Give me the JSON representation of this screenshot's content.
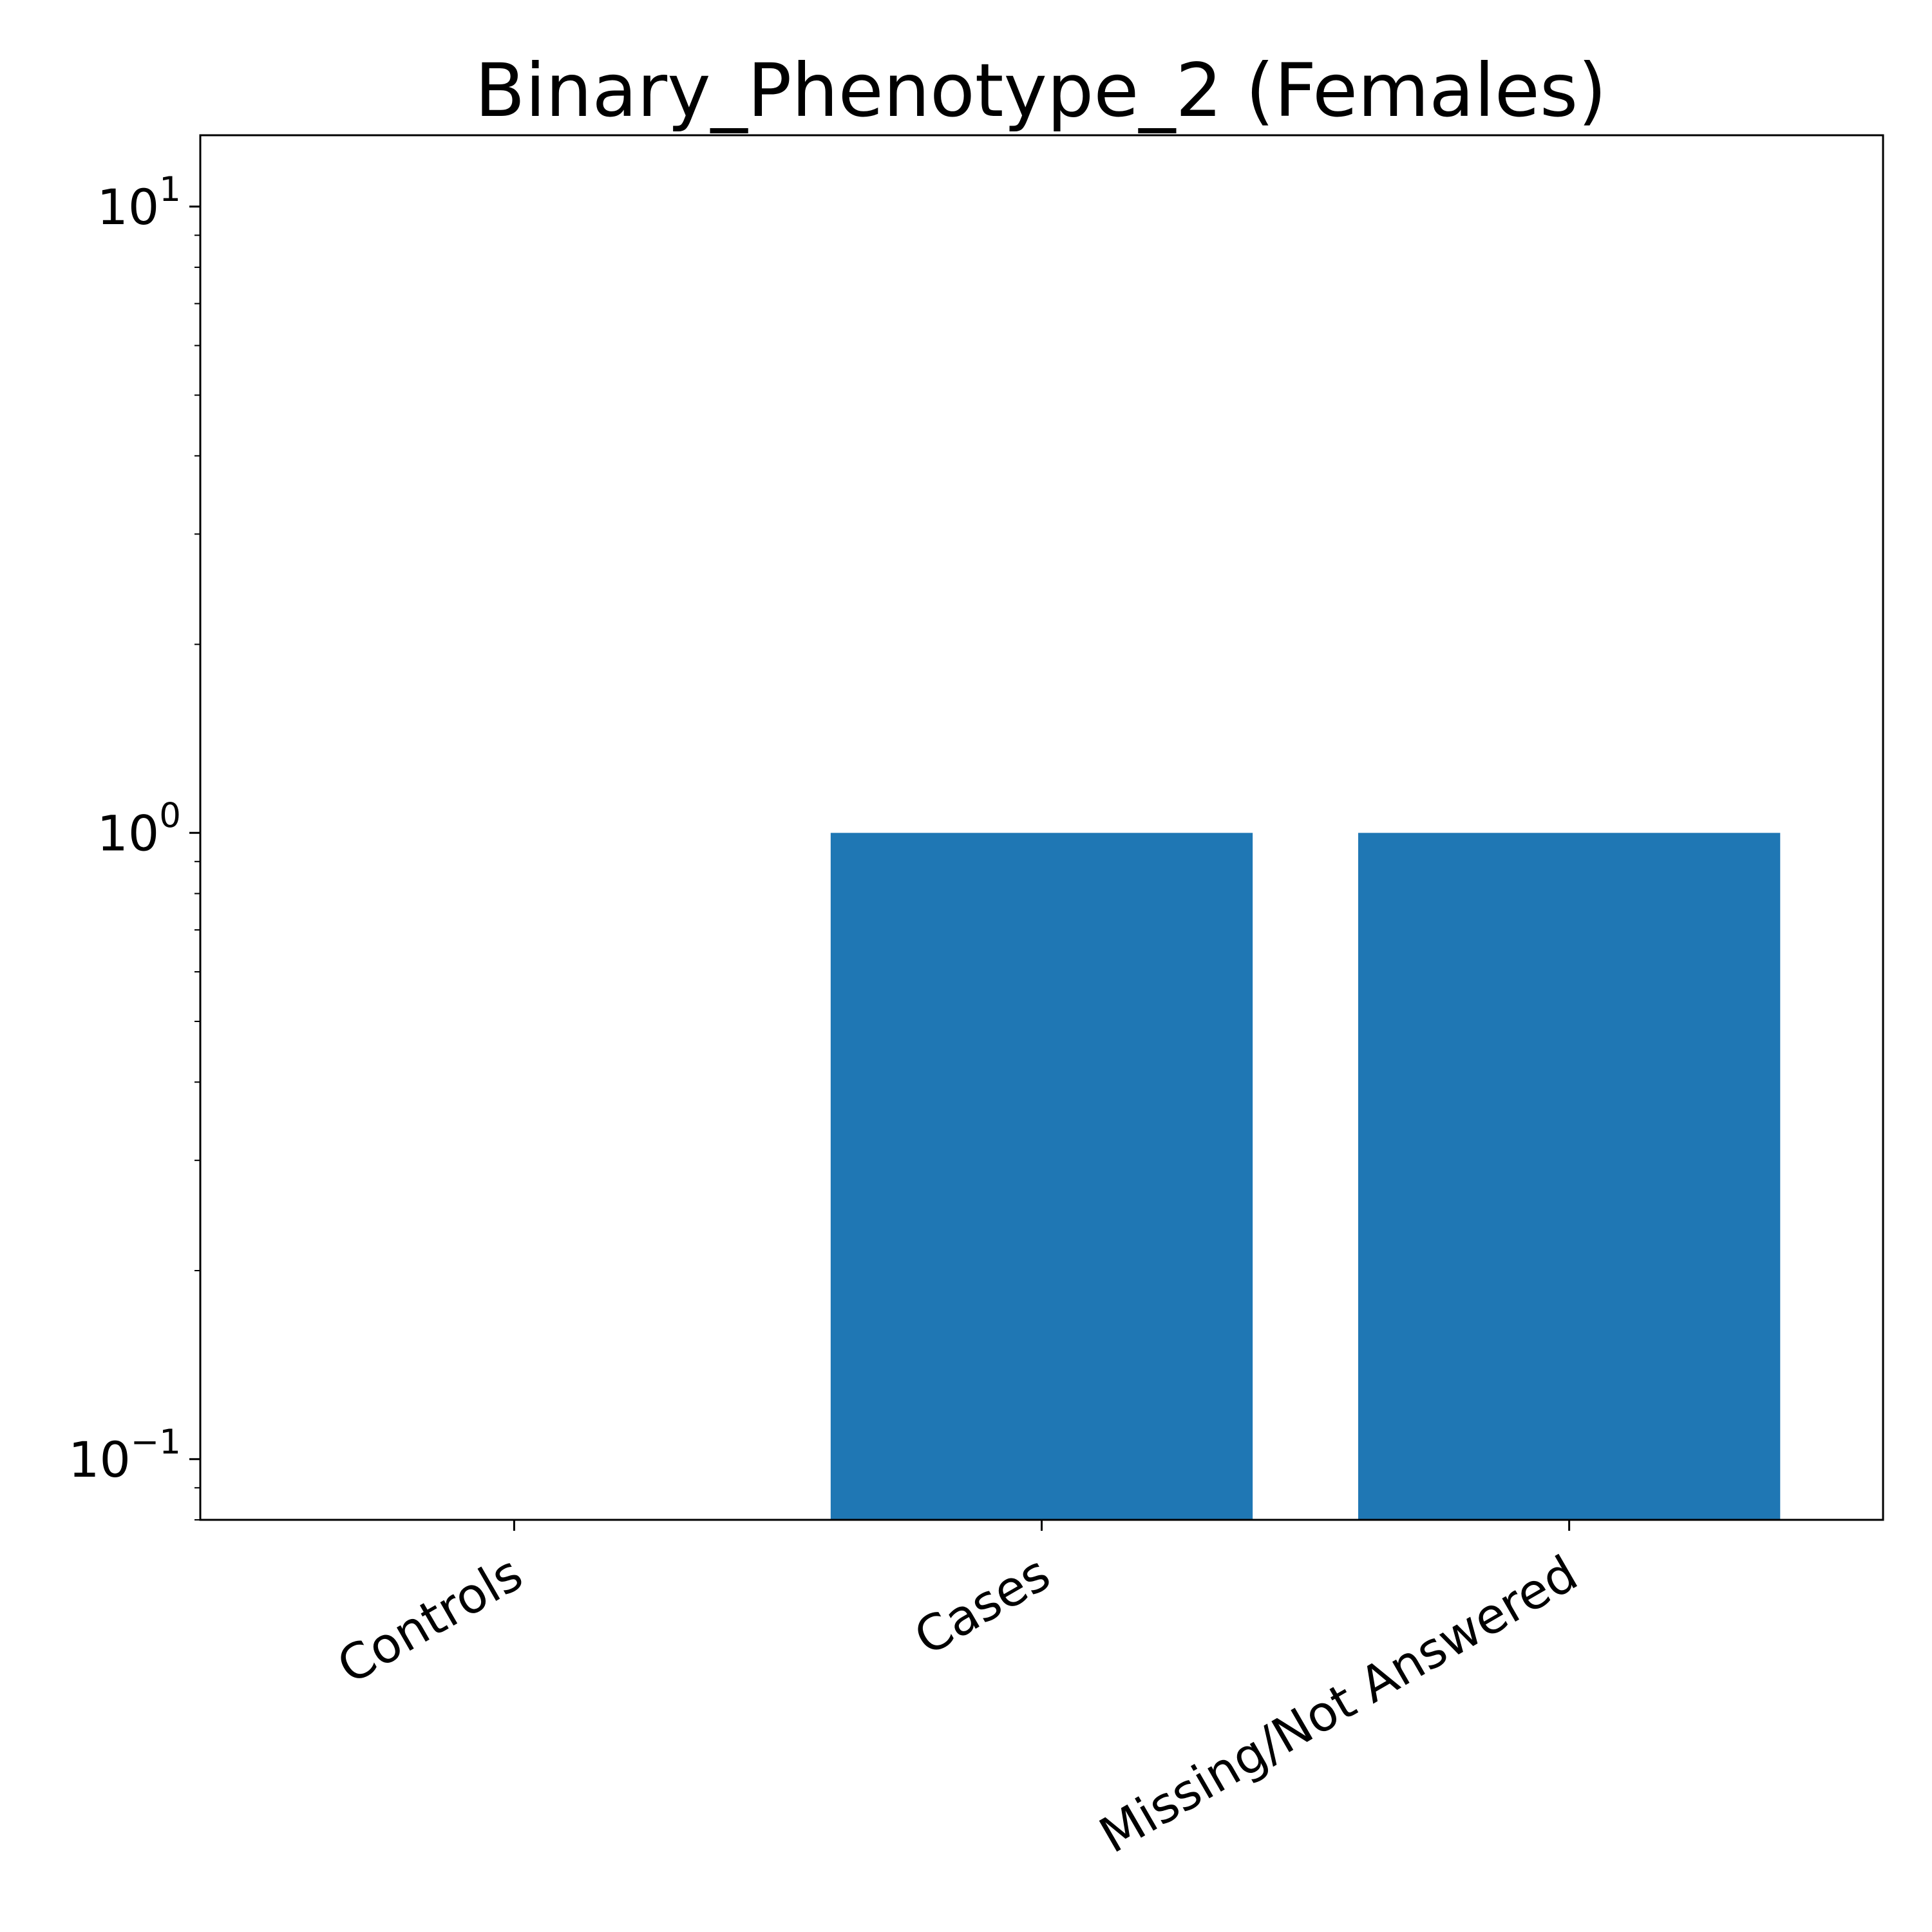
{
  "chart_data": {
    "type": "bar",
    "title": "Binary_Phenotype_2 (Females)",
    "xlabel": "",
    "ylabel": "",
    "y_scale": "log",
    "ylim": [
      0.08,
      13
    ],
    "categories": [
      "Controls",
      "Cases",
      "Missing/Not Answered"
    ],
    "values": [
      0,
      1,
      1
    ],
    "bar_color": "#1f77b4",
    "grid": false,
    "legend": false,
    "y_ticks": [
      {
        "value": 0.1,
        "base": "10",
        "exponent": "−1"
      },
      {
        "value": 1,
        "base": "10",
        "exponent": "0"
      },
      {
        "value": 10,
        "base": "10",
        "exponent": "1"
      }
    ]
  }
}
